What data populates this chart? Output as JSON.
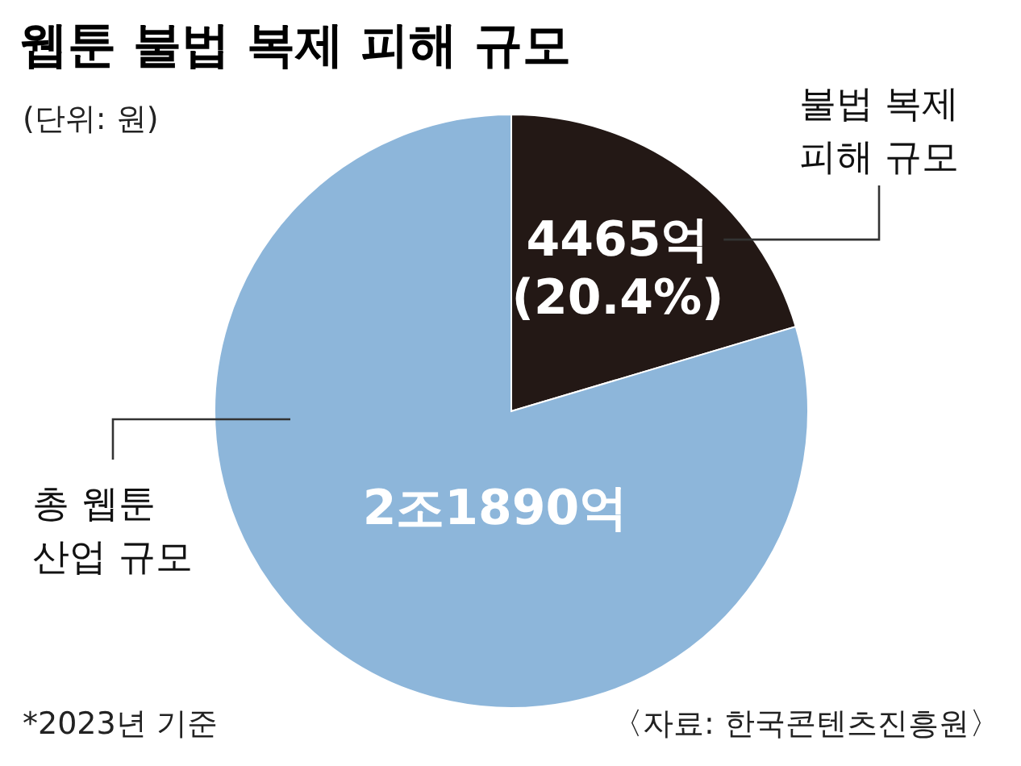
{
  "chart_data": {
    "type": "pie",
    "title": "웹툰 불법 복제 피해 규모",
    "subtitle": "(단위: 원)",
    "categories": [
      "불법 복제 피해 규모",
      "총 웹툰 산업 규모"
    ],
    "values": [
      20.4,
      79.6
    ],
    "colors": [
      "#231815",
      "#8db6da"
    ],
    "value_labels": [
      "4465억\n(20.4%)",
      null
    ],
    "annotations": [
      "*2023년 기준",
      "〈자료: 한국콘텐츠진흥원〉",
      "2조1890억"
    ]
  }
}
